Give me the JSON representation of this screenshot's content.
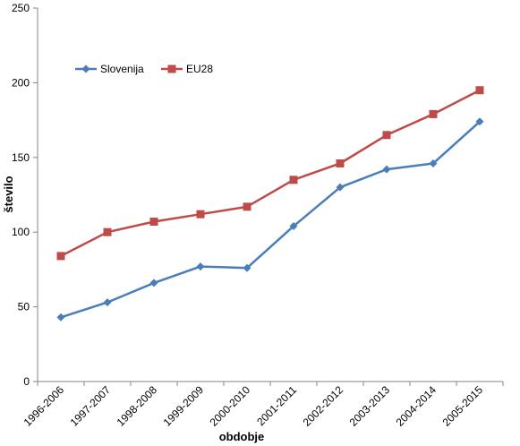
{
  "chart_data": {
    "type": "line",
    "title": "",
    "xlabel": "obdobje",
    "ylabel": "število",
    "categories": [
      "1996-2006",
      "1997-2007",
      "1998-2008",
      "1999-2009",
      "2000-2010",
      "2001-2011",
      "2002-2012",
      "2003-2013",
      "2004-2014",
      "2005-2015"
    ],
    "series": [
      {
        "name": "Slovenija",
        "color": "#4A7EBB",
        "marker": "diamond",
        "values": [
          43,
          53,
          66,
          77,
          76,
          104,
          130,
          142,
          146,
          174
        ]
      },
      {
        "name": "EU28",
        "color": "#BE4B48",
        "marker": "square",
        "values": [
          84,
          100,
          107,
          112,
          117,
          135,
          146,
          165,
          179,
          195
        ]
      }
    ],
    "ylim": [
      0,
      250
    ],
    "yticks": [
      0,
      50,
      100,
      150,
      200,
      250
    ],
    "grid": false,
    "legend_position": "top-left"
  }
}
